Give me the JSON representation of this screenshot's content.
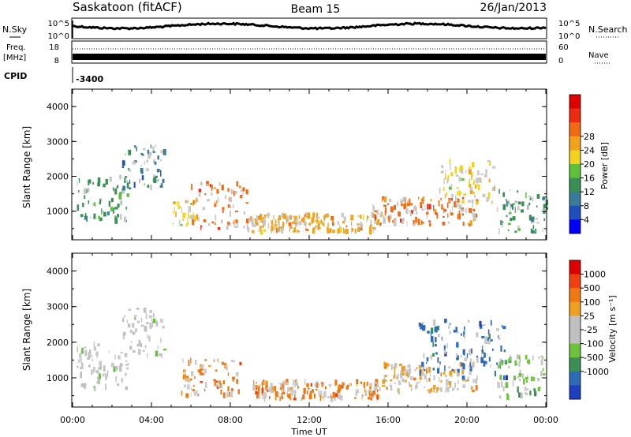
{
  "header": {
    "station": "Saskatoon (fitACF)",
    "beam": "Beam 15",
    "date": "26/Jan/2013"
  },
  "nsky_panel": {
    "left_label": "N.Sky",
    "left_ticks": [
      "10^5",
      "10^0"
    ],
    "right_ticks": [
      "10^5",
      "10^0"
    ],
    "right_label": "N.Search"
  },
  "freq_panel": {
    "left_label_1": "Freq.",
    "left_label_2": "[MHz]",
    "left_ticks": [
      "18",
      "8"
    ],
    "right_ticks": [
      "60",
      "0"
    ],
    "right_label": "Nave"
  },
  "cpid": {
    "label": "CPID",
    "value": "-3400"
  },
  "time_axis": {
    "label": "Time UT",
    "ticks": [
      "00:00",
      "04:00",
      "08:00",
      "12:00",
      "16:00",
      "20:00",
      "00:00"
    ]
  },
  "chart_data": [
    {
      "type": "heatmap",
      "quantity": "Power",
      "xlabel": "Time UT",
      "ylabel": "Slant Range [km]",
      "colorbar_label": "Power [dB]",
      "xlim_hours": [
        0,
        24
      ],
      "ylim_km": [
        180,
        4500
      ],
      "yticks": [
        "1000",
        "2000",
        "3000",
        "4000"
      ],
      "colorbar_ticks": [
        "4",
        "8",
        "12",
        "16",
        "20",
        "24",
        "28"
      ],
      "colorbar_colors": [
        "#0000ff",
        "#1f4fbf",
        "#3a7a9a",
        "#3a8f55",
        "#5fc03a",
        "#f2d21f",
        "#f2a21a",
        "#f26a10",
        "#ee2a10",
        "#e00000"
      ],
      "ground_scatter_color": "#c8c8c8",
      "echo_regions": [
        {
          "t0": 0.2,
          "t1": 2.8,
          "r0": 700,
          "r1": 2000,
          "level": 12
        },
        {
          "t0": 2.5,
          "t1": 4.6,
          "r0": 1600,
          "r1": 3000,
          "level": 9
        },
        {
          "t0": 5.0,
          "t1": 6.2,
          "r0": 600,
          "r1": 1300,
          "level": 16
        },
        {
          "t0": 6.0,
          "t1": 8.8,
          "r0": 500,
          "r1": 1800,
          "level": 22
        },
        {
          "t0": 8.8,
          "t1": 15.5,
          "r0": 400,
          "r1": 900,
          "level": 20
        },
        {
          "t0": 15.2,
          "t1": 20.5,
          "r0": 600,
          "r1": 1400,
          "level": 24
        },
        {
          "t0": 18.5,
          "t1": 21.5,
          "r0": 1200,
          "r1": 2500,
          "level": 18
        },
        {
          "t0": 21.5,
          "t1": 24.0,
          "r0": 400,
          "r1": 1600,
          "level": 12
        }
      ]
    },
    {
      "type": "heatmap",
      "quantity": "Velocity",
      "xlabel": "Time UT",
      "ylabel": "Slant Range [km]",
      "colorbar_label": "Velocity [m s⁻¹]",
      "xlim_hours": [
        0,
        24
      ],
      "ylim_km": [
        180,
        4500
      ],
      "yticks": [
        "1000",
        "2000",
        "3000",
        "4000"
      ],
      "colorbar_ticks": [
        "1000",
        "500",
        "100",
        "25",
        "-25",
        "-100",
        "-500",
        "-1000"
      ],
      "colorbar_colors": [
        "#1e3fbf",
        "#2d6ab8",
        "#3a8f55",
        "#6cc23a",
        "#c0c0c0",
        "#c0c0c0",
        "#f0a020",
        "#f07810",
        "#f04010",
        "#e00000"
      ],
      "ground_scatter_color": "#c8c8c8",
      "echo_regions": [
        {
          "t0": 0.2,
          "t1": 2.8,
          "r0": 700,
          "r1": 2000,
          "velocity": 0
        },
        {
          "t0": 2.5,
          "t1": 4.6,
          "r0": 1600,
          "r1": 3000,
          "velocity": 0
        },
        {
          "t0": 5.5,
          "t1": 8.5,
          "r0": 500,
          "r1": 1500,
          "velocity": -500
        },
        {
          "t0": 9.0,
          "t1": 15.5,
          "r0": 400,
          "r1": 900,
          "velocity": -300
        },
        {
          "t0": 15.5,
          "t1": 20.5,
          "r0": 600,
          "r1": 1400,
          "velocity": -200
        },
        {
          "t0": 17.5,
          "t1": 22.0,
          "r0": 1000,
          "r1": 2600,
          "velocity": 600
        },
        {
          "t0": 21.5,
          "t1": 24.0,
          "r0": 400,
          "r1": 1600,
          "velocity": 50
        }
      ]
    }
  ]
}
